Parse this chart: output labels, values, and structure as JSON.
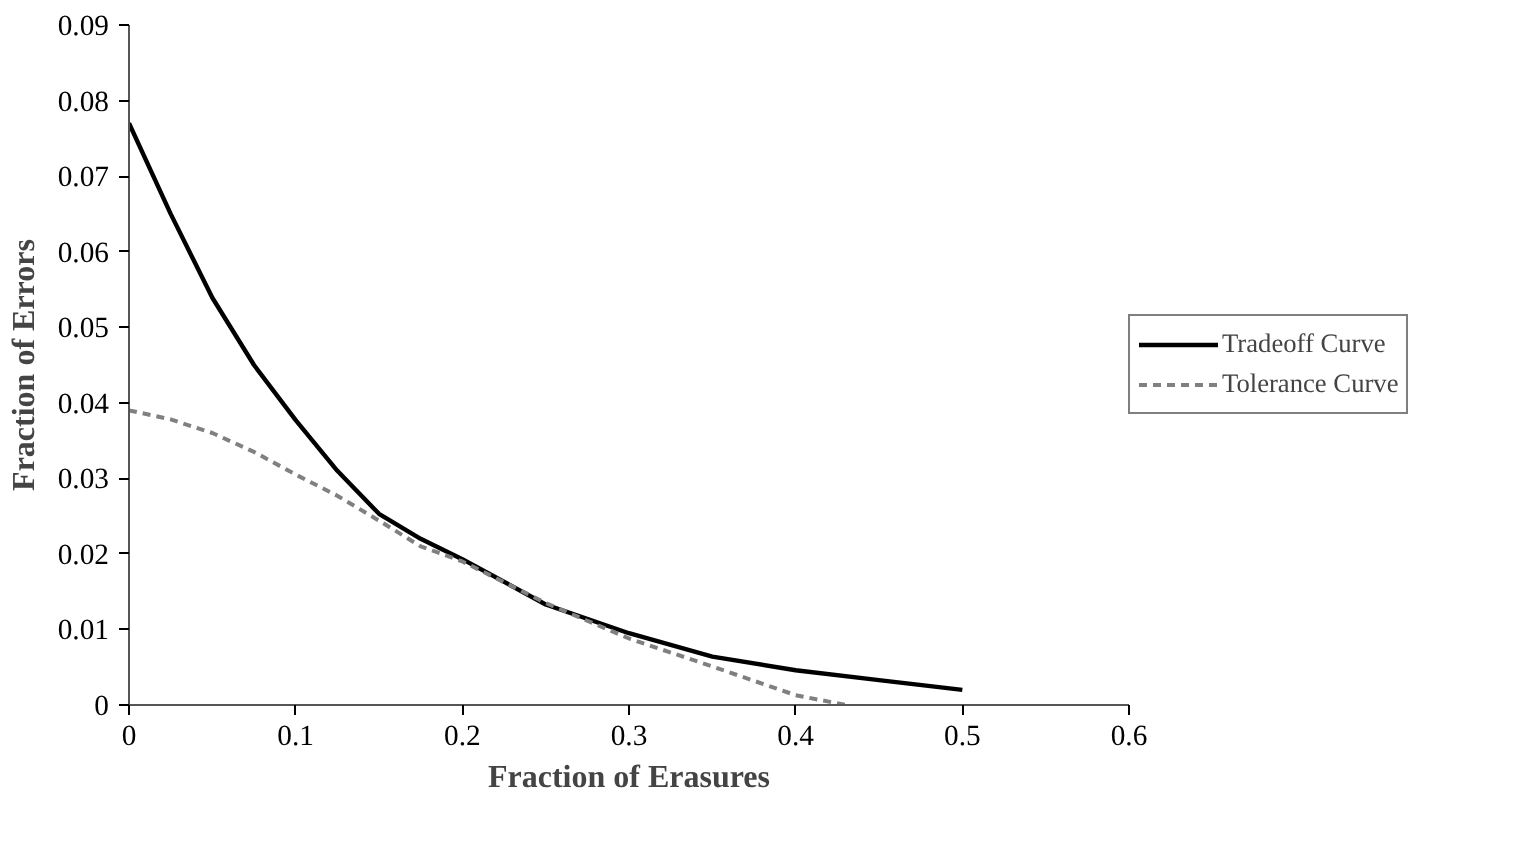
{
  "chart_data": {
    "type": "line",
    "xlabel": "Fraction of Erasures",
    "ylabel": "Fraction of Errors",
    "xlim": [
      0,
      0.6
    ],
    "xticks": [
      0,
      0.1,
      0.2,
      0.3,
      0.4,
      0.5,
      0.6
    ],
    "ylim": [
      0,
      0.09
    ],
    "yticks": [
      0,
      0.01,
      0.02,
      0.03,
      0.04,
      0.05,
      0.06,
      0.07,
      0.08,
      0.09
    ],
    "grid": false,
    "legend": "right",
    "marker": "none",
    "series": [
      {
        "name": "Tradeoff Curve",
        "color": "#000000",
        "line_style": "solid",
        "x": [
          0,
          0.025,
          0.05,
          0.075,
          0.1,
          0.125,
          0.15,
          0.175,
          0.2,
          0.25,
          0.3,
          0.35,
          0.4,
          0.45,
          0.5
        ],
        "values": [
          0.077,
          0.065,
          0.0539,
          0.045,
          0.0377,
          0.031,
          0.0253,
          0.022,
          0.0193,
          0.0133,
          0.0095,
          0.0064,
          0.0046,
          0.0033,
          0.002
        ]
      },
      {
        "name": "Tolerance Curve",
        "color": "#808080",
        "line_style": "dashed",
        "x": [
          0,
          0.025,
          0.05,
          0.075,
          0.1,
          0.125,
          0.15,
          0.175,
          0.2,
          0.25,
          0.3,
          0.35,
          0.4,
          0.43
        ],
        "values": [
          0.039,
          0.0378,
          0.036,
          0.0335,
          0.0305,
          0.0277,
          0.0244,
          0.021,
          0.019,
          0.0135,
          0.0088,
          0.0051,
          0.0013,
          0
        ]
      }
    ]
  }
}
